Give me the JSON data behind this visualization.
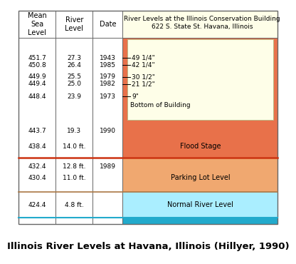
{
  "title": "Illinois River Levels at Havana, Illinois (Hillyer, 1990)",
  "header_building": "River Levels at the Illinois Conservation Building\n622 S. State St. Havana, Illinois",
  "col_headers": [
    "Mean\nSea\nLevel",
    "River\nLevel",
    "Date"
  ],
  "bg_color_flood": "#E8714A",
  "bg_color_parking": "#F0A870",
  "bg_color_normal": "#AAEEFF",
  "bg_color_building": "#FEFEE8",
  "bg_color_header": "#FEFEE8",
  "bg_color_water": "#22AACC",
  "border_flood": "#CC3311",
  "border_parking": "#AA7744",
  "border_normal": "#22AACC",
  "border_outer": "#888888",
  "text_color": "#000000",
  "font_size": 7.0,
  "title_font_size": 9.5,
  "rows": [
    {
      "msl": "451.7",
      "rl": "27.3",
      "date": "1943",
      "note": "49 1/4\"",
      "arrow": true
    },
    {
      "msl": "450.8",
      "rl": "26.4",
      "date": "1985",
      "note": "42 1/4\"",
      "arrow": true
    },
    {
      "msl": "449.9",
      "rl": "25.5",
      "date": "1979",
      "note": "30 1/2\"",
      "arrow": true
    },
    {
      "msl": "449.4",
      "rl": "25.0",
      "date": "1982",
      "note": "21 1/2\"",
      "arrow": true
    },
    {
      "msl": "448.4",
      "rl": "23.9",
      "date": "1973",
      "note": "9\"",
      "arrow": true
    },
    {
      "msl": "",
      "rl": "",
      "date": "",
      "note": "Bottom of Building",
      "arrow": false
    },
    {
      "msl": "443.7",
      "rl": "19.3",
      "date": "1990",
      "note": "",
      "arrow": false
    },
    {
      "msl": "438.4",
      "rl": "14.0 ft.",
      "date": "",
      "note": "Flood Stage",
      "arrow": false
    },
    {
      "msl": "432.4",
      "rl": "12.8 ft.",
      "date": "1989",
      "note": "",
      "arrow": false
    },
    {
      "msl": "430.4",
      "rl": "11.0 ft.",
      "date": "",
      "note": "Parking Lot Level",
      "arrow": false
    },
    {
      "msl": "424.4",
      "rl": "4.8 ft.",
      "date": "",
      "note": "Normal River Level",
      "arrow": false
    }
  ]
}
